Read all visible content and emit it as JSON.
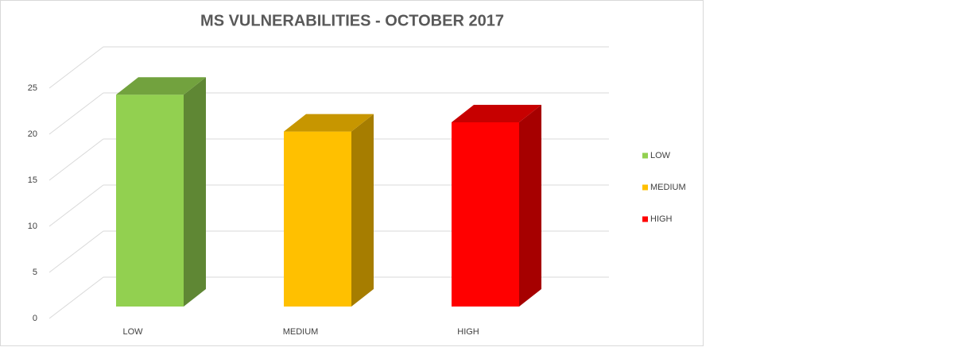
{
  "chart_data": {
    "type": "bar3d",
    "title": "MS VULNERABILITIES - OCTOBER 2017",
    "categories": [
      "LOW",
      "MEDIUM",
      "HIGH"
    ],
    "values": [
      23,
      19,
      20
    ],
    "colors": [
      "#92d050",
      "#ffc000",
      "#ff0000"
    ],
    "ylim": [
      0,
      25
    ],
    "yticks": [
      0,
      5,
      10,
      15,
      20,
      25
    ],
    "grid": true,
    "legend": "right"
  }
}
